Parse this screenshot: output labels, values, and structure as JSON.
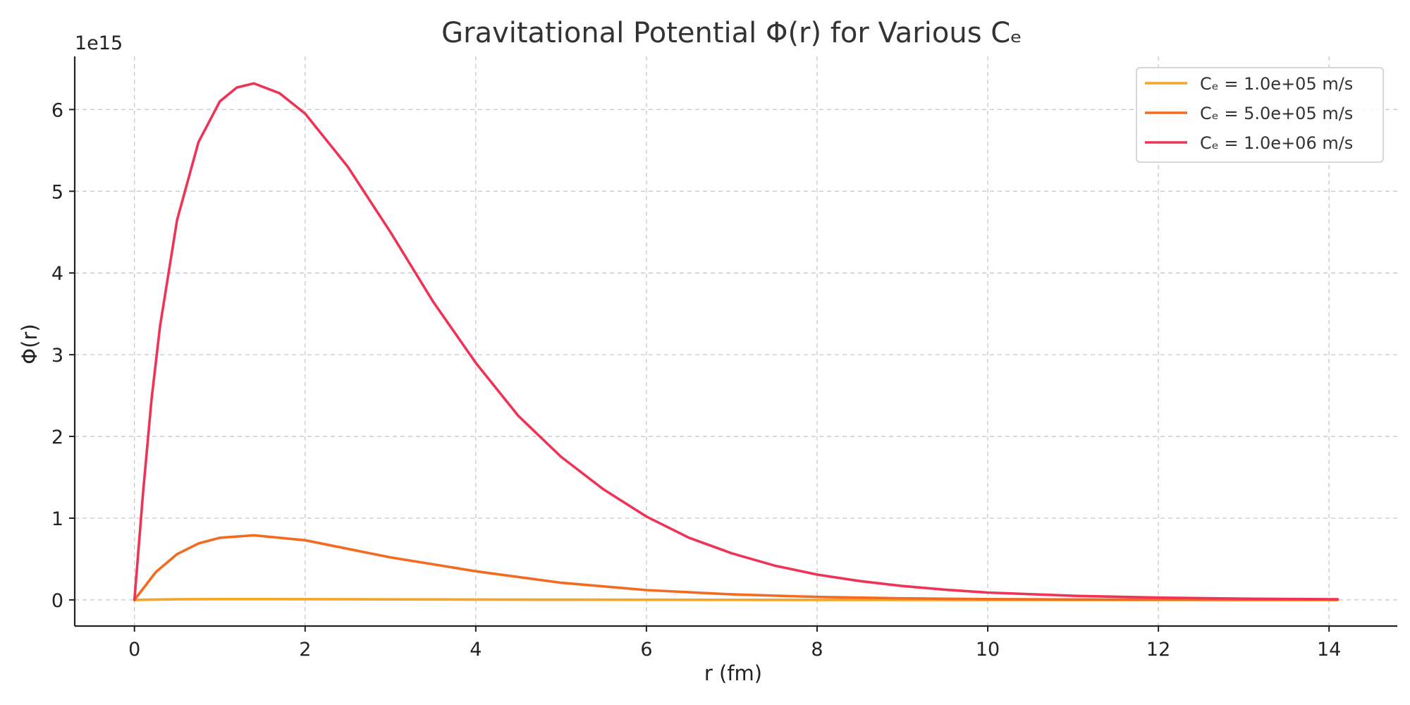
{
  "chart_data": {
    "type": "line",
    "title": "Gravitational Potential Φ(r) for Various Cₑ",
    "xlabel": "r (fm)",
    "ylabel": "Φ(r)",
    "y_offset_text": "1e15",
    "xlim": [
      -0.7,
      14.8
    ],
    "ylim": [
      -0.32,
      6.65
    ],
    "x_ticks": [
      0,
      2,
      4,
      6,
      8,
      10,
      12,
      14
    ],
    "x_tick_labels": [
      "0",
      "2",
      "4",
      "6",
      "8",
      "10",
      "12",
      "14"
    ],
    "y_ticks": [
      0,
      1,
      2,
      3,
      4,
      5,
      6
    ],
    "y_tick_labels": [
      "0",
      "1",
      "2",
      "3",
      "4",
      "5",
      "6"
    ],
    "y_scale_factor": 1000000000000000.0,
    "grid": true,
    "legend_position": "top-right",
    "series": [
      {
        "name": "Cₑ = 1.0e+05 m/s",
        "color": "#f5a623",
        "x": [
          0,
          0.25,
          0.5,
          0.75,
          1,
          1.4,
          2,
          3,
          4,
          5,
          6,
          7,
          8,
          9,
          10,
          11,
          12,
          13,
          14.1
        ],
        "y": [
          0,
          0.0042,
          0.0068,
          0.0083,
          0.0091,
          0.0095,
          0.0088,
          0.0063,
          0.0041,
          0.0025,
          0.0014,
          0.00078,
          0.00042,
          0.00022,
          0.00011,
          5.8e-05,
          3e-05,
          1.5e-05,
          7e-06
        ]
      },
      {
        "name": "Cₑ = 5.0e+05 m/s",
        "color": "#f26b21",
        "x": [
          0,
          0.25,
          0.5,
          0.75,
          1,
          1.4,
          2,
          3,
          4,
          5,
          6,
          7,
          8,
          9,
          10,
          11,
          12,
          13,
          14.1
        ],
        "y": [
          0,
          0.34,
          0.56,
          0.69,
          0.76,
          0.79,
          0.73,
          0.52,
          0.35,
          0.21,
          0.12,
          0.067,
          0.036,
          0.019,
          0.0097,
          0.0049,
          0.0025,
          0.0012,
          0.0006
        ]
      },
      {
        "name": "Cₑ = 1.0e+06 m/s",
        "color": "#ee3355",
        "x": [
          0,
          0.1,
          0.2,
          0.3,
          0.5,
          0.75,
          1,
          1.2,
          1.4,
          1.7,
          2,
          2.5,
          3,
          3.5,
          4,
          4.5,
          5,
          5.5,
          6,
          6.5,
          7,
          7.5,
          8,
          8.5,
          9,
          9.5,
          10,
          11,
          12,
          13,
          14.1
        ],
        "y": [
          0,
          1.3,
          2.45,
          3.35,
          4.65,
          5.6,
          6.1,
          6.27,
          6.32,
          6.2,
          5.95,
          5.3,
          4.5,
          3.65,
          2.9,
          2.25,
          1.75,
          1.35,
          1.02,
          0.76,
          0.57,
          0.42,
          0.31,
          0.23,
          0.17,
          0.125,
          0.09,
          0.05,
          0.028,
          0.015,
          0.008
        ]
      }
    ]
  }
}
